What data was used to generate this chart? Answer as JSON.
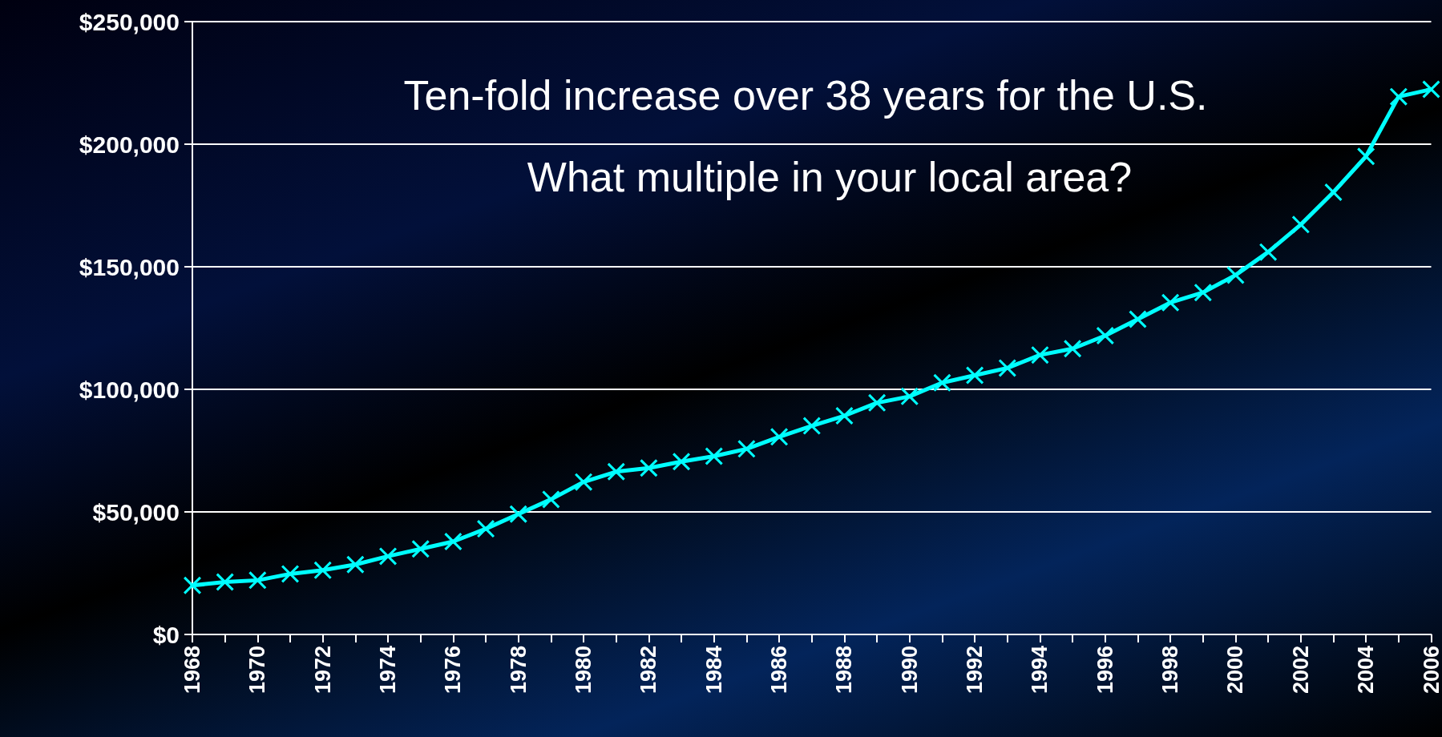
{
  "chart_data": {
    "type": "line",
    "title": "Ten-fold increase over 38 years for the U.S.",
    "subtitle": "What multiple in your local area?",
    "categories": [
      "1968",
      null,
      "1970",
      null,
      "1972",
      null,
      "1974",
      null,
      "1976",
      null,
      "1978",
      null,
      "1980",
      null,
      "1982",
      null,
      "1984",
      null,
      "1986",
      null,
      "1988",
      null,
      "1990",
      null,
      "1992",
      null,
      "1994",
      null,
      "1996",
      null,
      "1998",
      null,
      "2000",
      null,
      "2002",
      null,
      "2004",
      null,
      "2006"
    ],
    "series": [
      {
        "color": "#00ffff",
        "values": [
          20000,
          21400,
          22100,
          24700,
          26200,
          28500,
          31900,
          34900,
          37900,
          43100,
          49100,
          55100,
          62200,
          66400,
          67900,
          70500,
          72700,
          75700,
          80600,
          85100,
          89200,
          94500,
          97100,
          102700,
          105700,
          108700,
          114000,
          116600,
          121900,
          128600,
          135400,
          139500,
          146600,
          156000,
          167200,
          180400,
          195000,
          219400,
          222400
        ]
      }
    ],
    "ylim": [
      0,
      250000
    ],
    "yticks": [
      {
        "value": 0,
        "label": "$0"
      },
      {
        "value": 50000,
        "label": "$50,000"
      },
      {
        "value": 100000,
        "label": "$100,000"
      },
      {
        "value": 150000,
        "label": "$150,000"
      },
      {
        "value": 200000,
        "label": "$200,000"
      },
      {
        "value": 250000,
        "label": "$250,000"
      }
    ],
    "grid": "y",
    "marker": "cross",
    "line_style": "solid"
  }
}
